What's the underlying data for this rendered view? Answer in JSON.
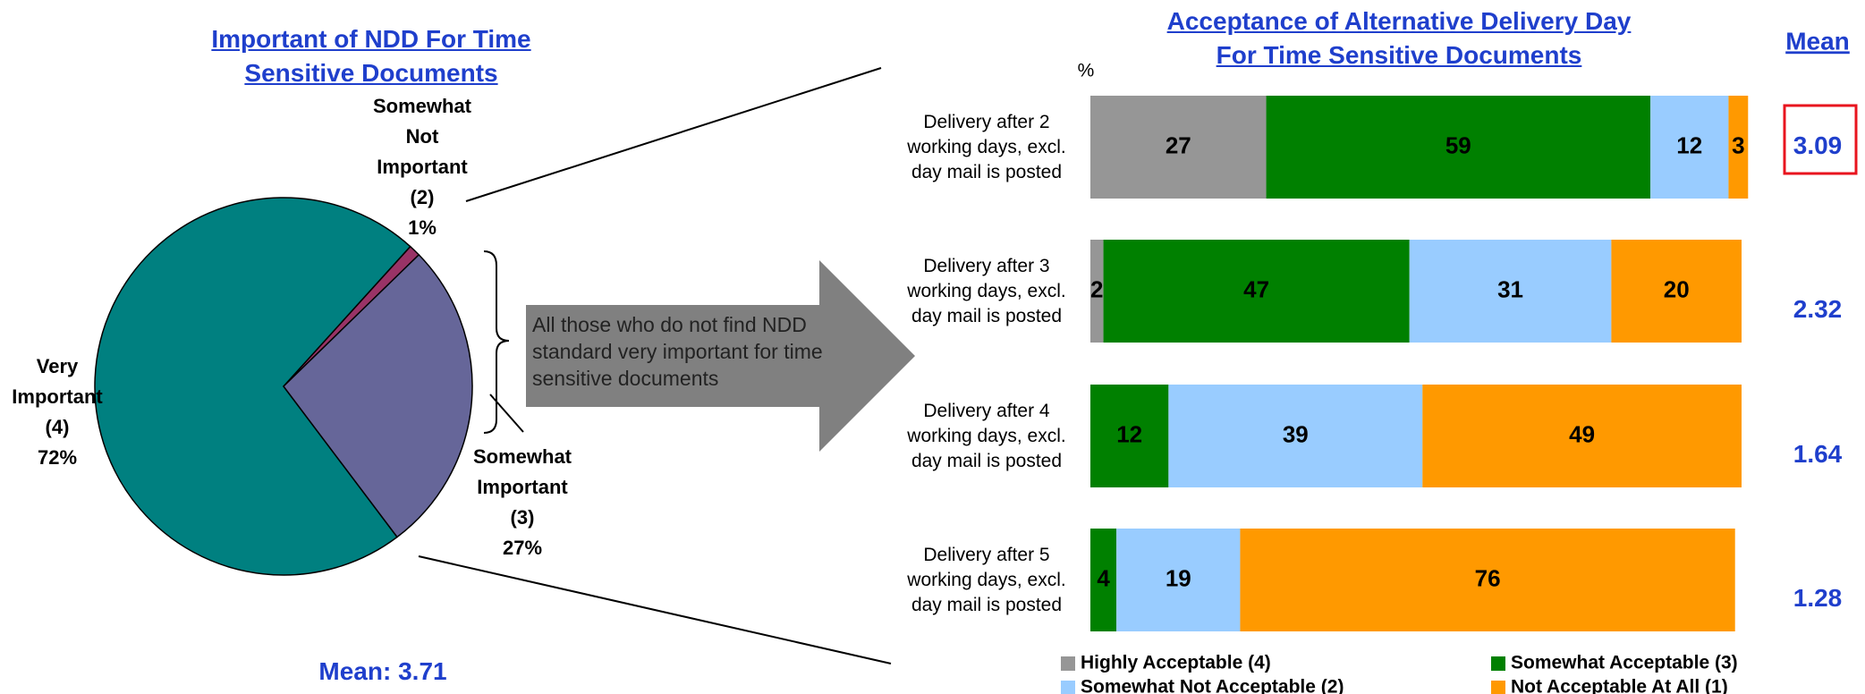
{
  "chart_data": [
    {
      "type": "pie",
      "title": "Important of NDD For Time Sensitive Documents",
      "categories": [
        "Very Important (4)",
        "Somewhat Not Important (2)",
        "Somewhat Important (3)"
      ],
      "values": [
        72,
        1,
        27
      ],
      "value_labels": [
        "72%",
        "1%",
        "27%"
      ],
      "colors": [
        "#008080",
        "#993366",
        "#666699"
      ],
      "annotation": "Mean: 3.71"
    },
    {
      "type": "stacked_barh",
      "title": "Acceptance of Alternative Delivery Day For Time Sensitive Documents",
      "unit_label": "%",
      "categories": [
        "Delivery after 2 working days, excl. day mail is posted",
        "Delivery after 3 working days, excl. day mail is posted",
        "Delivery after 4 working days, excl. day mail is posted",
        "Delivery after 5 working days, excl. day mail is posted"
      ],
      "series": [
        {
          "name": "Highly Acceptable (4)",
          "color": "#969696",
          "values": [
            27,
            2,
            null,
            null
          ]
        },
        {
          "name": "Somewhat Acceptable (3)",
          "color": "#008000",
          "values": [
            59,
            47,
            12,
            4
          ]
        },
        {
          "name": "Somewhat Not Acceptable (2)",
          "color": "#99ccff",
          "values": [
            12,
            31,
            39,
            19
          ]
        },
        {
          "name": "Not Acceptable At All (1)",
          "color": "#ff9900",
          "values": [
            3,
            20,
            49,
            76
          ]
        }
      ],
      "xlim": [
        0,
        100
      ],
      "means_title": "Mean",
      "means": [
        3.09,
        2.32,
        1.64,
        1.28
      ]
    }
  ],
  "callout": "All those who do not  find NDD standard very important for time sensitive documents"
}
